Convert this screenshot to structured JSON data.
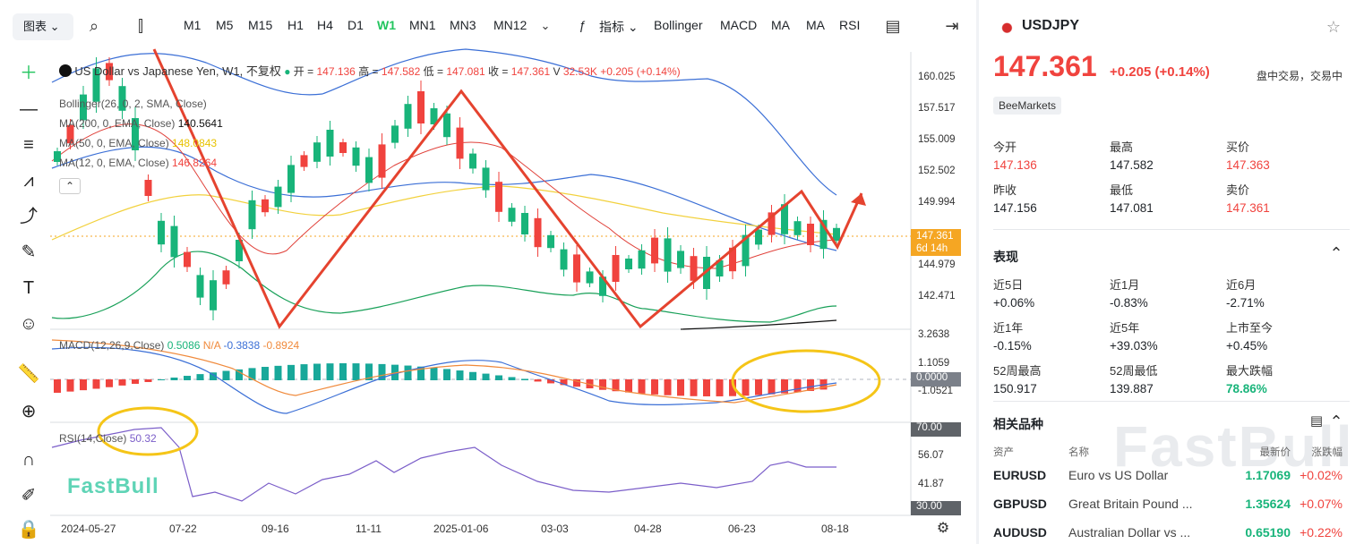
{
  "toolbar": {
    "chart_type": "图表",
    "timeframes": [
      "M1",
      "M5",
      "M15",
      "H1",
      "H4",
      "D1",
      "W1",
      "MN1",
      "MN3",
      "MN12"
    ],
    "active_timeframe": "W1",
    "indicators_label": "指标",
    "quick_indicators": [
      "Bollinger",
      "MACD",
      "MA",
      "MA",
      "RSI"
    ]
  },
  "legend": {
    "title": "US Dollar vs Japanese Yen, W1, 不复权",
    "open_label": "开 =",
    "open": "147.136",
    "high_label": "高 =",
    "high": "147.582",
    "low_label": "低 =",
    "low": "147.081",
    "close_label": "收 =",
    "close": "147.361",
    "vol_label": "V",
    "vol": "32.53K",
    "change": "+0.205 (+0.14%)",
    "bollinger": "Bollinger(26, 0, 2, SMA, Close)",
    "ma200": "MA(200, 0, EMA, Close)",
    "ma200_val": "140.5641",
    "ma50": "MA(50, 0, EMA, Close)",
    "ma50_val": "148.0843",
    "ma12": "MA(12, 0, EMA, Close)",
    "ma12_val": "146.8264",
    "macd": "MACD(12,26,9,Close)",
    "macd_v1": "0.5086",
    "macd_v2": "N/A",
    "macd_v3": "-0.3838",
    "macd_v4": "-0.8924",
    "rsi": "RSI(14,Close)",
    "rsi_val": "50.32"
  },
  "price_axis": [
    "160.025",
    "157.517",
    "155.009",
    "152.502",
    "149.994",
    "144.979",
    "142.471"
  ],
  "last_price_tag": "147.361",
  "countdown_tag": "6d 14h",
  "macd_axis": [
    "3.2638",
    "1.1059",
    "-1.0521"
  ],
  "macd_zero_tag": "0.0000",
  "rsi_axis": [
    "56.07",
    "41.87"
  ],
  "rsi_tag_top": "70.00",
  "rsi_tag_bottom": "30.00",
  "dates": [
    "2024-05-27",
    "07-22",
    "09-16",
    "11-11",
    "2025-01-06",
    "03-03",
    "04-28",
    "06-23",
    "08-18"
  ],
  "watermark": "FastBull",
  "panel": {
    "symbol": "USDJPY",
    "price": "147.361",
    "change": "+0.205",
    "change_pct": "(+0.14%)",
    "session": "盘中交易，交易中",
    "source": "BeeMarkets",
    "stats": [
      {
        "k": "今开",
        "v": "147.136",
        "c": "red"
      },
      {
        "k": "最高",
        "v": "147.582",
        "c": "dark"
      },
      {
        "k": "买价",
        "v": "147.363",
        "c": "red"
      },
      {
        "k": "昨收",
        "v": "147.156",
        "c": "dark"
      },
      {
        "k": "最低",
        "v": "147.081",
        "c": "dark"
      },
      {
        "k": "卖价",
        "v": "147.361",
        "c": "red"
      }
    ],
    "perf_title": "表现",
    "perf": [
      {
        "k": "近5日",
        "v": "+0.06%",
        "c": "dark"
      },
      {
        "k": "近1月",
        "v": "-0.83%",
        "c": "dark"
      },
      {
        "k": "近6月",
        "v": "-2.71%",
        "c": "dark"
      },
      {
        "k": "近1年",
        "v": "-0.15%",
        "c": "dark"
      },
      {
        "k": "近5年",
        "v": "+39.03%",
        "c": "dark"
      },
      {
        "k": "上市至今",
        "v": "+0.45%",
        "c": "dark"
      },
      {
        "k": "52周最高",
        "v": "150.917",
        "c": "dark"
      },
      {
        "k": "52周最低",
        "v": "139.887",
        "c": "dark"
      },
      {
        "k": "最大跌幅",
        "v": "78.86%",
        "c": "green"
      }
    ],
    "related_title": "相关品种",
    "cols": [
      "资产",
      "名称",
      "最新价",
      "涨跌幅"
    ],
    "rows": [
      {
        "a": "EURUSD",
        "n": "Euro vs US Dollar",
        "p": "1.17069",
        "c": "+0.02%"
      },
      {
        "a": "GBPUSD",
        "n": "Great Britain Pound ...",
        "p": "1.35624",
        "c": "+0.07%"
      },
      {
        "a": "AUDUSD",
        "n": "Australian Dollar vs ...",
        "p": "0.65190",
        "c": "+0.22%"
      }
    ]
  }
}
